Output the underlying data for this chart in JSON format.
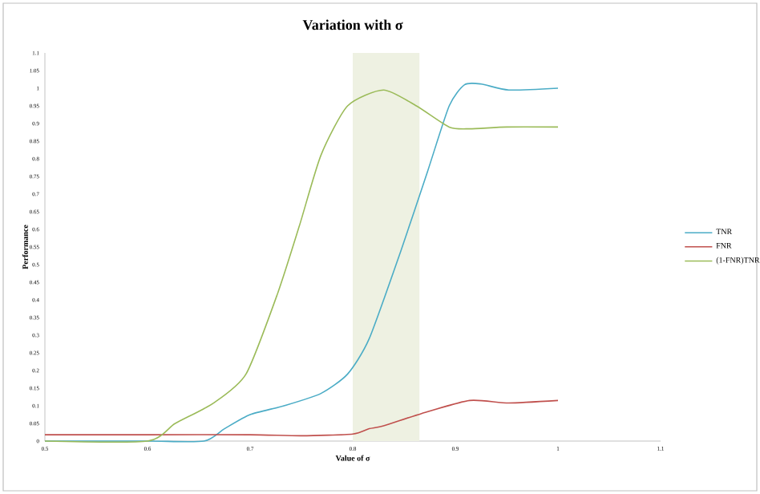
{
  "chart_data": {
    "type": "line",
    "title": "Variation with σ",
    "xlabel": "Value of σ",
    "ylabel": "Performance",
    "xlim": [
      0.5,
      1.1
    ],
    "xticks": [
      0.5,
      0.6,
      0.7,
      0.8,
      0.9,
      1,
      1.1
    ],
    "ylim": [
      0,
      1.1
    ],
    "yticks": [
      0,
      0.05,
      0.1,
      0.15,
      0.2,
      0.25,
      0.3,
      0.35,
      0.4,
      0.45,
      0.5,
      0.55,
      0.6,
      0.65,
      0.7,
      0.75,
      0.8,
      0.85,
      0.9,
      0.95,
      1,
      1.05,
      1.1
    ],
    "legend": "right",
    "grid": false,
    "bands": [
      {
        "axis": "x",
        "from": 0.8,
        "to": 0.865,
        "color": "#eef1e2"
      }
    ],
    "series": [
      {
        "name": "TNR",
        "color": "#4bacc6",
        "x": [
          0.5,
          0.6,
          0.655,
          0.675,
          0.7,
          0.733,
          0.769,
          0.795,
          0.816,
          0.847,
          0.873,
          0.894,
          0.909,
          0.925,
          0.952,
          1.0
        ],
        "values": [
          0,
          0,
          0,
          0.035,
          0.075,
          0.1,
          0.135,
          0.19,
          0.29,
          0.54,
          0.765,
          0.95,
          1.01,
          1.012,
          0.995,
          1.0
        ]
      },
      {
        "name": "FNR",
        "color": "#c0504d",
        "x": [
          0.5,
          0.6,
          0.7,
          0.75,
          0.8,
          0.816,
          0.83,
          0.867,
          0.914,
          0.952,
          1.0
        ],
        "values": [
          0.018,
          0.018,
          0.018,
          0.015,
          0.02,
          0.035,
          0.043,
          0.078,
          0.115,
          0.108,
          0.115
        ]
      },
      {
        "name": "(1-FNR)TNR",
        "color": "#9bbb59",
        "x": [
          0.5,
          0.6,
          0.627,
          0.664,
          0.696,
          0.727,
          0.748,
          0.769,
          0.795,
          0.83,
          0.862,
          0.894,
          0.914,
          0.95,
          1.0
        ],
        "values": [
          0,
          0,
          0.05,
          0.107,
          0.19,
          0.42,
          0.61,
          0.81,
          0.95,
          0.995,
          0.95,
          0.89,
          0.885,
          0.89,
          0.89
        ]
      }
    ]
  }
}
